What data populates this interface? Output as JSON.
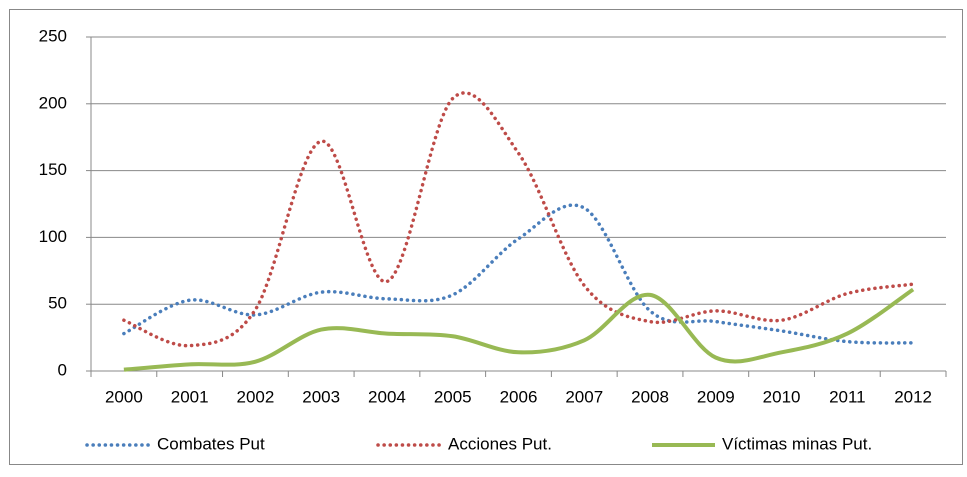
{
  "chart_data": {
    "type": "line",
    "categories": [
      "2000",
      "2001",
      "2002",
      "2003",
      "2004",
      "2005",
      "2006",
      "2007",
      "2008",
      "2009",
      "2010",
      "2011",
      "2012"
    ],
    "series": [
      {
        "name": "Combates Put",
        "color": "#4a7ebb",
        "style": "dotted",
        "values": [
          28,
          53,
          42,
          59,
          54,
          57,
          99,
          122,
          45,
          37,
          30,
          22,
          21
        ]
      },
      {
        "name": "Acciones Put.",
        "color": "#be4b48",
        "style": "dotted",
        "values": [
          38,
          19,
          46,
          172,
          67,
          204,
          163,
          64,
          37,
          45,
          38,
          58,
          65
        ]
      },
      {
        "name": "Víctimas minas Put.",
        "color": "#98b954",
        "style": "solid",
        "values": [
          1,
          5,
          7,
          31,
          28,
          26,
          14,
          23,
          57,
          10,
          14,
          28,
          61
        ]
      }
    ],
    "ylim": [
      0,
      250
    ],
    "yticks": [
      0,
      50,
      100,
      150,
      200,
      250
    ],
    "grid": true,
    "legend": "bottom"
  }
}
